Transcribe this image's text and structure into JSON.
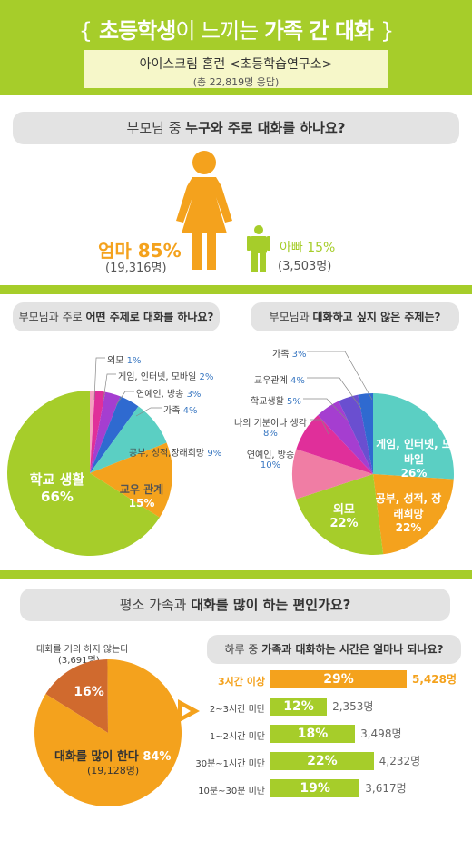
{
  "header": {
    "title_open": "{",
    "title_a": "초등학생",
    "title_b": "이 느끼는 ",
    "title_c": "가족 간 대화",
    "title_close": "}",
    "source_line1": "아이스크림 홈런 <초등학습연구소>",
    "source_line2": "(총 22,819명 응답)"
  },
  "colors": {
    "green": "#a6cd2a",
    "orange": "#f4a21d",
    "teal": "#5bcfc3",
    "pink": "#f07da4",
    "magenta": "#e02f9a",
    "purple": "#a53ed0",
    "blue": "#2f6ad0",
    "lightpink": "#f5a0c0"
  },
  "section1": {
    "question_a": "부모님 중 ",
    "question_b": "누구와 주로 대화를 하나요?",
    "mom_label": "엄마 85%",
    "mom_count": "(19,316명)",
    "dad_label": "아빠 15%",
    "dad_count": "(3,503명)"
  },
  "section2": {
    "left_q_a": "부모님과 주로 ",
    "left_q_b": "어떤 주제로 대화를 하나요?",
    "right_q_a": "부모님과 ",
    "right_q_b": "대화하고 싶지 않은 주제는?"
  },
  "section3": {
    "question_a": "평소 가족과 ",
    "question_b": "대화를 많이 하는 편인가요?",
    "little_label": "대화를 거의 하지 않는다",
    "little_count": "(3,691명)",
    "little_pct": "16%",
    "much_label": "대화를 많이 한다",
    "much_pct": "84%",
    "much_count": "(19,128명)",
    "time_q_a": "하루 중 ",
    "time_q_b": "가족과 대화하는 시간은 얼마나 되나요?"
  },
  "chart_data": [
    {
      "type": "pie",
      "title": "부모님 중 누구와 주로 대화를 하나요?",
      "categories": [
        "엄마",
        "아빠"
      ],
      "values": [
        85,
        15
      ],
      "counts": [
        "19,316명",
        "3,503명"
      ]
    },
    {
      "type": "pie",
      "title": "부모님과 주로 어떤 주제로 대화를 하나요?",
      "categories": [
        "학교 생활",
        "교우 관계",
        "공부, 성적,장래희망",
        "가족",
        "연예인, 방송",
        "게임, 인터넷, 모바일",
        "외모"
      ],
      "values": [
        66,
        15,
        9,
        4,
        3,
        2,
        1
      ],
      "labels": [
        "66%",
        "15%",
        "9%",
        "4%",
        "3%",
        "2%",
        "1%"
      ]
    },
    {
      "type": "pie",
      "title": "부모님과 대화하고 싶지 않은 주제는?",
      "categories": [
        "게임, 인터넷, 모바일",
        "공부, 성적, 장래희망",
        "외모",
        "연예인, 방송",
        "나의 기분이나 생각",
        "학교생활",
        "교우관계",
        "가족"
      ],
      "values": [
        26,
        22,
        22,
        10,
        8,
        5,
        4,
        3
      ],
      "labels": [
        "26%",
        "22%",
        "22%",
        "10%",
        "8%",
        "5%",
        "4%",
        "3%"
      ]
    },
    {
      "type": "pie",
      "title": "평소 가족과 대화를 많이 하는 편인가요?",
      "categories": [
        "대화를 많이 한다",
        "대화를 거의 하지 않는다"
      ],
      "values": [
        84,
        16
      ],
      "counts": [
        "19,128명",
        "3,691명"
      ]
    },
    {
      "type": "bar",
      "title": "하루 중 가족과 대화하는 시간은 얼마나 되나요?",
      "categories": [
        "3시간 이상",
        "2~3시간 미만",
        "1~2시간 미만",
        "30분~1시간 미만",
        "10분~30분 미만"
      ],
      "values": [
        29,
        12,
        18,
        22,
        19
      ],
      "labels": [
        "29%",
        "12%",
        "18%",
        "22%",
        "19%"
      ],
      "counts": [
        "5,428명",
        "2,353명",
        "3,498명",
        "4,232명",
        "3,617명"
      ]
    }
  ]
}
